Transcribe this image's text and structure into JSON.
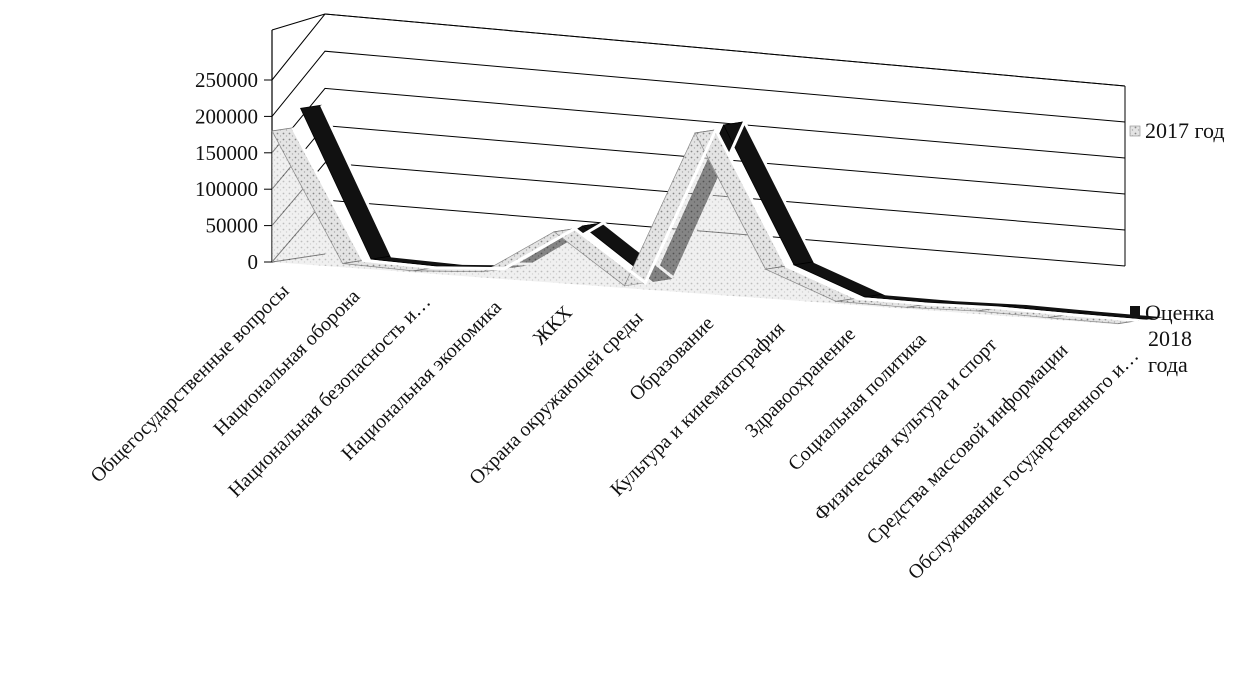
{
  "chart_data": {
    "type": "area",
    "title": "",
    "xlabel": "",
    "ylabel": "",
    "ylim": [
      0,
      250000
    ],
    "yticks": [
      0,
      50000,
      100000,
      150000,
      200000,
      250000
    ],
    "grid": true,
    "legend_position": "right",
    "categories": [
      "Общегосударственные вопросы",
      "Национальная оборона",
      "Национальная безопасность и…",
      "Национальная экономика",
      "ЖКХ",
      "Охрана окружающей среды",
      "Образование",
      "Культура и кинематография",
      "Здравоохранение",
      "Социальная политика",
      "Физическая культура и спорт",
      "Средства массовой информации",
      "Обслуживание государственного и…"
    ],
    "series": [
      {
        "name": "2017 год",
        "color": "#bdbdbd",
        "values": [
          180000,
          5000,
          2000,
          8000,
          70000,
          3000,
          220000,
          40000,
          3000,
          2000,
          4000,
          2000,
          1000
        ]
      },
      {
        "name": "Оценка 2018 года",
        "color": "#111111",
        "values": [
          205000,
          5000,
          2000,
          8000,
          72000,
          3000,
          225000,
          40000,
          3000,
          2000,
          4000,
          2000,
          1000
        ]
      }
    ]
  }
}
